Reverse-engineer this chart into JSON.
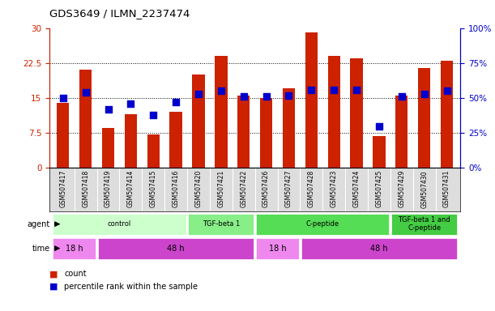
{
  "title": "GDS3649 / ILMN_2237474",
  "samples": [
    "GSM507417",
    "GSM507418",
    "GSM507419",
    "GSM507414",
    "GSM507415",
    "GSM507416",
    "GSM507420",
    "GSM507421",
    "GSM507422",
    "GSM507426",
    "GSM507427",
    "GSM507428",
    "GSM507423",
    "GSM507424",
    "GSM507425",
    "GSM507429",
    "GSM507430",
    "GSM507431"
  ],
  "counts": [
    14.0,
    21.0,
    8.5,
    11.5,
    7.2,
    12.0,
    20.0,
    24.0,
    15.5,
    15.0,
    17.0,
    29.0,
    24.0,
    23.5,
    6.8,
    15.5,
    21.5,
    23.0
  ],
  "percentile_ranks": [
    50,
    54,
    42,
    46,
    38,
    47,
    53,
    55,
    51,
    51,
    52,
    56,
    56,
    56,
    30,
    51,
    53,
    55
  ],
  "ylim_left": [
    0,
    30
  ],
  "ylim_right": [
    0,
    100
  ],
  "yticks_left": [
    0,
    7.5,
    15,
    22.5,
    30
  ],
  "ytick_labels_left": [
    "0",
    "7.5",
    "15",
    "22.5",
    "30"
  ],
  "yticks_right": [
    0,
    25,
    50,
    75,
    100
  ],
  "ytick_labels_right": [
    "0%",
    "25%",
    "50%",
    "75%",
    "100%"
  ],
  "bar_color": "#CC2200",
  "dot_color": "#0000CC",
  "background_plot": "#FFFFFF",
  "agent_groups": [
    {
      "label": "control",
      "start": 0,
      "end": 5,
      "color": "#CCFFCC"
    },
    {
      "label": "TGF-beta 1",
      "start": 6,
      "end": 8,
      "color": "#88EE88"
    },
    {
      "label": "C-peptide",
      "start": 9,
      "end": 14,
      "color": "#55DD55"
    },
    {
      "label": "TGF-beta 1 and\nC-peptide",
      "start": 15,
      "end": 17,
      "color": "#44CC44"
    }
  ],
  "time_groups": [
    {
      "label": "18 h",
      "start": 0,
      "end": 1,
      "color": "#EE88EE"
    },
    {
      "label": "48 h",
      "start": 2,
      "end": 8,
      "color": "#CC44CC"
    },
    {
      "label": "18 h",
      "start": 9,
      "end": 10,
      "color": "#EE88EE"
    },
    {
      "label": "48 h",
      "start": 11,
      "end": 17,
      "color": "#CC44CC"
    }
  ],
  "legend_count_color": "#CC2200",
  "legend_dot_color": "#0000CC",
  "gridline_color": "#000000",
  "bar_width": 0.55,
  "dot_size": 28,
  "xticklabel_bg": "#DDDDDD",
  "n_samples": 18
}
